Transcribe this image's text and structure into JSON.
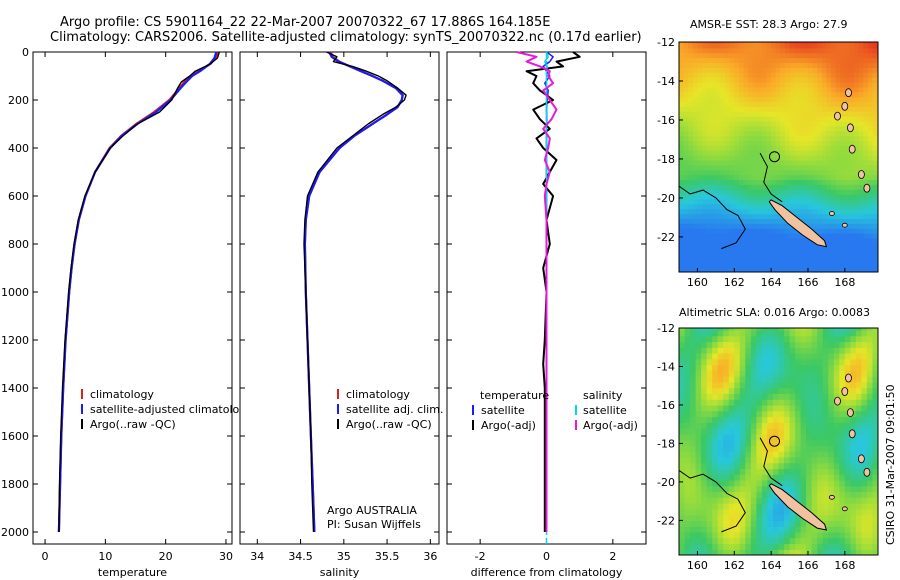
{
  "header": {
    "title_line1": "Argo profile: CS 5901164_22 22-Mar-2007 20070322_67 17.886S 164.185E",
    "title_line2": "Climatology: CARS2006. Satellite-adjusted climatology: synTS_20070322.nc (0.17d earlier)"
  },
  "colors": {
    "climatology": "#e0201a",
    "satellite": "#1a1aff",
    "argo": "#000000",
    "sal_satellite": "#00d8e8",
    "sal_argo": "#e81ad8"
  },
  "chart_data": [
    {
      "type": "line",
      "id": "temperature",
      "xlabel": "temperature",
      "xlim": [
        -2,
        31
      ],
      "ylim": [
        0,
        2050
      ],
      "xticks": [
        "0",
        "10",
        "20",
        "30"
      ],
      "yticks": [
        "0",
        "200",
        "400",
        "600",
        "800",
        "1000",
        "1200",
        "1400",
        "1600",
        "1800",
        "2000"
      ],
      "depth": [
        0,
        25,
        50,
        80,
        100,
        125,
        150,
        200,
        250,
        300,
        350,
        400,
        500,
        600,
        700,
        800,
        900,
        1000,
        1200,
        1400,
        1600,
        1800,
        2000
      ],
      "series": [
        {
          "name": "climatology",
          "values": [
            28.6,
            28.3,
            27.4,
            25.5,
            24.2,
            23.1,
            22.3,
            20.6,
            18.1,
            15.1,
            12.6,
            10.7,
            8.3,
            6.7,
            5.6,
            4.9,
            4.4,
            4.0,
            3.4,
            3.0,
            2.7,
            2.5,
            2.3
          ]
        },
        {
          "name": "satellite-adjusted climatology",
          "values": [
            28.4,
            28.1,
            27.3,
            25.7,
            24.4,
            23.4,
            22.5,
            20.8,
            18.4,
            15.3,
            12.7,
            10.8,
            8.3,
            6.7,
            5.6,
            4.9,
            4.4,
            4.0,
            3.4,
            3.0,
            2.7,
            2.5,
            2.3
          ]
        },
        {
          "name": "Argo(..raw -QC)",
          "values": [
            28.9,
            28.6,
            27.4,
            24.9,
            24.0,
            22.6,
            22.0,
            21.0,
            19.0,
            15.3,
            12.9,
            10.8,
            8.3,
            6.6,
            5.5,
            4.8,
            4.3,
            3.9,
            3.3,
            2.9,
            2.6,
            2.4,
            2.3
          ]
        }
      ],
      "legend": [
        "climatology",
        "satellite-adjusted climatology",
        "Argo(..raw -QC)"
      ]
    },
    {
      "type": "line",
      "id": "salinity",
      "xlabel": "salinity",
      "xlim": [
        33.8,
        36.1
      ],
      "ylim": [
        0,
        2050
      ],
      "xticks": [
        "34",
        "34.5",
        "35",
        "35.5",
        "36"
      ],
      "depth": [
        0,
        20,
        40,
        60,
        80,
        100,
        120,
        150,
        180,
        200,
        230,
        260,
        300,
        350,
        400,
        500,
        600,
        700,
        800,
        1000,
        1200,
        1400,
        1600,
        1800,
        2000
      ],
      "series": [
        {
          "name": "climatology",
          "values": [
            34.85,
            34.87,
            34.95,
            35.07,
            35.2,
            35.33,
            35.45,
            35.6,
            35.68,
            35.67,
            35.62,
            35.5,
            35.33,
            35.12,
            34.95,
            34.72,
            34.6,
            34.56,
            34.55,
            34.56,
            34.58,
            34.6,
            34.62,
            34.64,
            34.66
          ]
        },
        {
          "name": "satellite adj. clim.",
          "values": [
            34.83,
            34.86,
            34.94,
            35.07,
            35.2,
            35.33,
            35.45,
            35.6,
            35.68,
            35.67,
            35.62,
            35.5,
            35.33,
            35.12,
            34.95,
            34.72,
            34.6,
            34.56,
            34.55,
            34.56,
            34.58,
            34.6,
            34.62,
            34.64,
            34.66
          ]
        },
        {
          "name": "Argo(..raw -QC)",
          "values": [
            34.8,
            34.92,
            34.88,
            35.1,
            35.26,
            35.4,
            35.5,
            35.62,
            35.72,
            35.7,
            35.6,
            35.45,
            35.28,
            35.1,
            34.92,
            34.7,
            34.58,
            34.55,
            34.54,
            34.56,
            34.58,
            34.6,
            34.62,
            34.63,
            34.65
          ]
        }
      ],
      "legend": [
        "climatology",
        "satellite adj. clim.",
        "Argo(..raw -QC)"
      ],
      "annotation": [
        "Argo AUSTRALIA",
        "PI: Susan Wijffels"
      ]
    },
    {
      "type": "line",
      "id": "difference",
      "xlabel": "difference from climatology",
      "xlim": [
        -3,
        3
      ],
      "ylim": [
        0,
        2050
      ],
      "xticks": [
        "-2",
        "0",
        "2"
      ],
      "depth": [
        0,
        20,
        40,
        60,
        80,
        100,
        130,
        160,
        200,
        240,
        280,
        320,
        360,
        400,
        450,
        500,
        550,
        600,
        700,
        800,
        900,
        1000,
        1200,
        1300,
        1400,
        1600,
        1800,
        2000
      ],
      "series": [
        {
          "name": "temperature satellite",
          "values": [
            0,
            0.2,
            0.1,
            -0.1,
            0,
            0.1,
            -0.05,
            0.05,
            0.02,
            0,
            0.01,
            0,
            0,
            0,
            0,
            0,
            0,
            0,
            0,
            0,
            0,
            0,
            0,
            0,
            0,
            0,
            0,
            0
          ]
        },
        {
          "name": "temperature Argo(-adj)",
          "values": [
            0.8,
            1.0,
            0.3,
            0.5,
            -0.6,
            -0.3,
            -0.4,
            -0.2,
            0.2,
            -0.4,
            -0.2,
            0.1,
            -0.3,
            -0.1,
            0.3,
            0.1,
            -0.1,
            0.2,
            0,
            0.1,
            -0.1,
            0,
            -0.05,
            -0.1,
            -0.05,
            -0.05,
            -0.05,
            -0.05
          ]
        },
        {
          "name": "salinity satellite",
          "values": [
            0,
            0.05,
            -0.05,
            0.02,
            0,
            0,
            0,
            0,
            0,
            0,
            0,
            0,
            0,
            0,
            0,
            0,
            0,
            0,
            0,
            0,
            0,
            0,
            0,
            0,
            0,
            0,
            0,
            0
          ]
        },
        {
          "name": "salinity Argo(-adj)",
          "values": [
            -0.9,
            -0.3,
            -0.6,
            -0.2,
            0.1,
            0.05,
            0.2,
            -0.1,
            0.1,
            0.3,
            0.15,
            -0.1,
            0.1,
            0.05,
            -0.05,
            0.1,
            0,
            -0.05,
            0,
            0,
            0,
            0,
            0,
            0,
            0,
            0,
            0,
            0
          ]
        }
      ],
      "legend_headers": [
        "temperature",
        "salinity"
      ],
      "legend_left": [
        "satellite",
        "Argo(-adj)"
      ],
      "legend_right": [
        "satellite",
        "Argo(-adj)"
      ]
    },
    {
      "type": "heatmap",
      "id": "sst-map",
      "title": "AMSR-E SST: 28.3 Argo: 27.9",
      "xlim": [
        159,
        169.8
      ],
      "ylim": [
        -23.8,
        -12
      ],
      "xticks": [
        "160",
        "162",
        "164",
        "166",
        "168"
      ],
      "yticks": [
        "-12",
        "-14",
        "-16",
        "-18",
        "-20",
        "-22"
      ],
      "float_position": {
        "lon": 164.185,
        "lat": -17.886
      }
    },
    {
      "type": "heatmap",
      "id": "sla-map",
      "title": "Altimetric SLA: 0.016 Argo: 0.0083",
      "xlim": [
        159,
        169.8
      ],
      "ylim": [
        -23.8,
        -12
      ],
      "xticks": [
        "160",
        "162",
        "164",
        "166",
        "168"
      ],
      "yticks": [
        "-12",
        "-14",
        "-16",
        "-18",
        "-20",
        "-22"
      ],
      "float_position": {
        "lon": 164.185,
        "lat": -17.886
      }
    }
  ],
  "footer": {
    "credit": "CSIRO 31-Mar-2007 09:01:50"
  }
}
